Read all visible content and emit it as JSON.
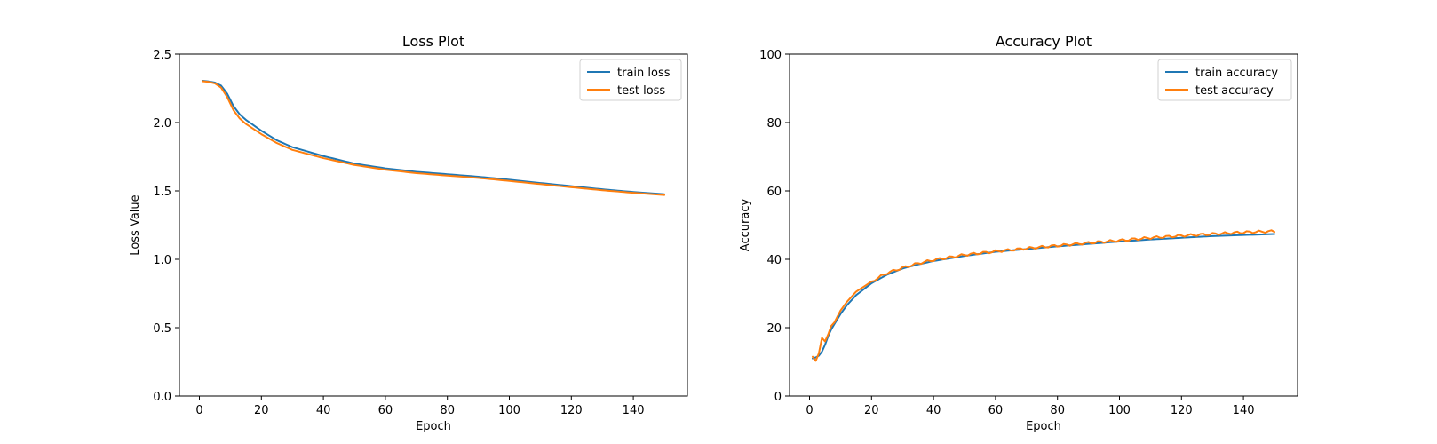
{
  "colors": {
    "train": "#1f77b4",
    "test": "#ff7f0e"
  },
  "chart_data": [
    {
      "type": "line",
      "title": "Loss Plot",
      "xlabel": "Epoch",
      "ylabel": "Loss Value",
      "xlim": [
        -6.45,
        157.45
      ],
      "ylim": [
        0,
        2.5
      ],
      "xticks": [
        0,
        20,
        40,
        60,
        80,
        100,
        120,
        140
      ],
      "yticks": [
        0.0,
        0.5,
        1.0,
        1.5,
        2.0,
        2.5
      ],
      "ytick_labels": [
        "0.0",
        "0.5",
        "1.0",
        "1.5",
        "2.0",
        "2.5"
      ],
      "legend": "top-right",
      "grid": false,
      "anchors": {
        "x": [
          1,
          3,
          5,
          7,
          9,
          11,
          13,
          15,
          20,
          25,
          30,
          40,
          50,
          60,
          70,
          80,
          90,
          100,
          110,
          120,
          130,
          140,
          150
        ],
        "train": [
          2.305,
          2.3,
          2.292,
          2.27,
          2.21,
          2.12,
          2.06,
          2.02,
          1.94,
          1.87,
          1.82,
          1.755,
          1.7,
          1.665,
          1.64,
          1.622,
          1.604,
          1.582,
          1.558,
          1.535,
          1.512,
          1.492,
          1.476
        ],
        "test": [
          2.302,
          2.297,
          2.286,
          2.255,
          2.185,
          2.09,
          2.03,
          1.99,
          1.915,
          1.85,
          1.8,
          1.74,
          1.69,
          1.655,
          1.63,
          1.612,
          1.595,
          1.573,
          1.55,
          1.527,
          1.505,
          1.486,
          1.47
        ]
      },
      "series": [
        {
          "name": "train loss",
          "key": "train"
        },
        {
          "name": "test loss",
          "key": "test"
        }
      ]
    },
    {
      "type": "line",
      "title": "Accuracy Plot",
      "xlabel": "Epoch",
      "ylabel": "Accuracy",
      "xlim": [
        -6.45,
        157.45
      ],
      "ylim": [
        0,
        100
      ],
      "xticks": [
        0,
        20,
        40,
        60,
        80,
        100,
        120,
        140
      ],
      "yticks": [
        0,
        20,
        40,
        60,
        80,
        100
      ],
      "ytick_labels": [
        "0",
        "20",
        "40",
        "60",
        "80",
        "100"
      ],
      "legend": "top-right",
      "grid": false,
      "anchors": {
        "x": [
          1,
          2,
          3,
          4,
          5,
          6,
          7,
          8,
          10,
          12,
          15,
          20,
          25,
          30,
          35,
          40,
          50,
          60,
          70,
          80,
          90,
          100,
          110,
          120,
          130,
          140,
          150
        ],
        "train": [
          11.0,
          11.3,
          11.8,
          13.0,
          15.0,
          17.5,
          19.5,
          21.0,
          24.0,
          26.5,
          29.5,
          33.0,
          35.5,
          37.3,
          38.5,
          39.5,
          41.0,
          42.2,
          43.0,
          43.8,
          44.5,
          45.2,
          45.8,
          46.3,
          46.8,
          47.1,
          47.4
        ],
        "test": [
          11.5,
          10.3,
          12.5,
          17.0,
          16.0,
          18.0,
          20.5,
          21.5,
          25.0,
          27.5,
          30.5,
          33.5,
          36.0,
          37.5,
          38.8,
          39.8,
          41.3,
          42.3,
          43.2,
          44.0,
          44.8,
          45.5,
          46.3,
          46.9,
          47.4,
          47.9,
          48.2
        ]
      },
      "series": [
        {
          "name": "train accuracy",
          "key": "train"
        },
        {
          "name": "test accuracy",
          "key": "test"
        }
      ]
    }
  ]
}
